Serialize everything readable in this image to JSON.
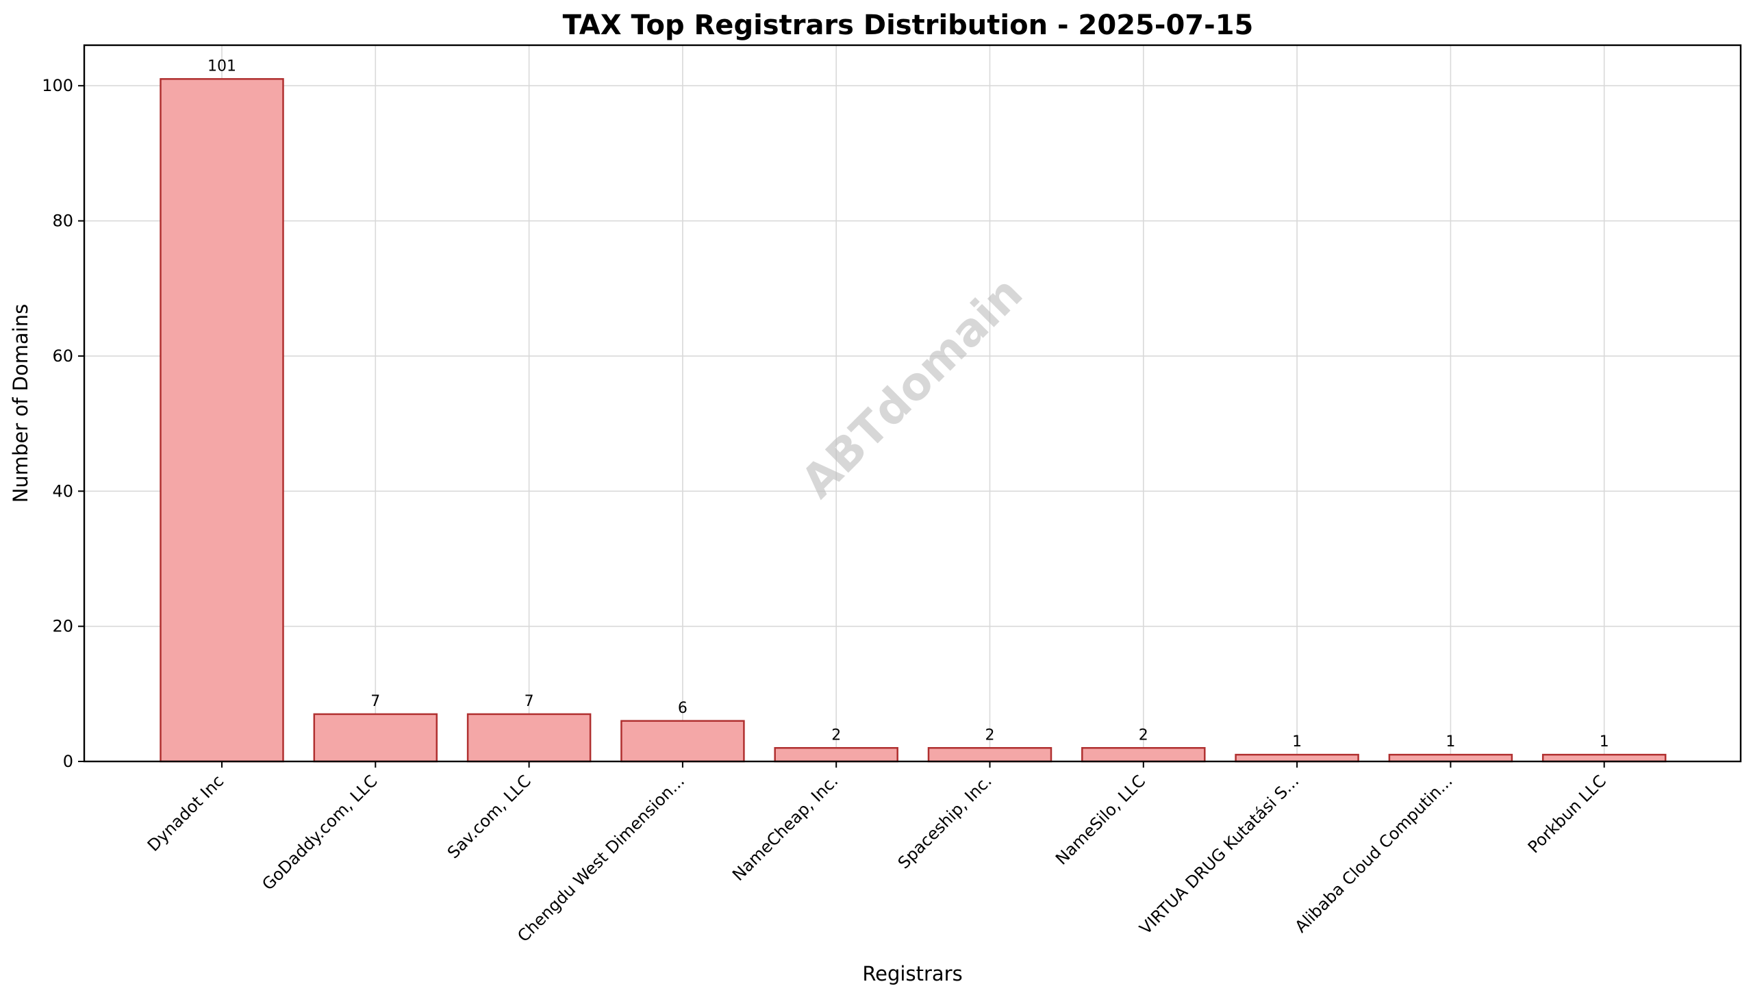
{
  "chart_data": {
    "type": "bar",
    "title": "TAX Top Registrars Distribution - 2025-07-15",
    "xlabel": "Registrars",
    "ylabel": "Number of Domains",
    "ylim": [
      0,
      106
    ],
    "yticks": [
      0,
      20,
      40,
      60,
      80,
      100
    ],
    "grid": true,
    "categories": [
      "Dynadot Inc",
      "GoDaddy.com, LLC",
      "Sav.com, LLC",
      "Chengdu West Dimension...",
      "NameCheap, Inc.",
      "Spaceship, Inc.",
      "NameSilo, LLC",
      "VIRTUA DRUG Kutatási S...",
      "Alibaba Cloud Computin...",
      "Porkbun LLC"
    ],
    "values": [
      101,
      7,
      7,
      6,
      2,
      2,
      2,
      1,
      1,
      1
    ],
    "data_labels": [
      "101",
      "7",
      "7",
      "6",
      "2",
      "2",
      "2",
      "1",
      "1",
      "1"
    ],
    "bar_color": "#f4a7a7",
    "bar_edge_color": "#b03030",
    "watermark": "ABTdomain"
  }
}
